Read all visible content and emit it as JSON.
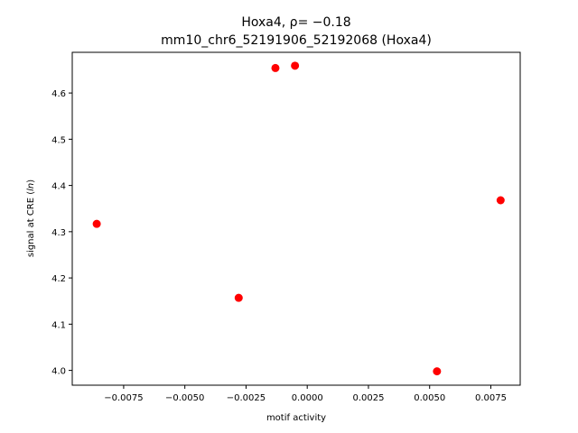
{
  "chart_data": {
    "type": "scatter",
    "title_line1": "Hoxa4, ρ= −0.18",
    "title_line2": "mm10_chr6_52191906_52192068 (Hoxa4)",
    "xlabel": "motif activity",
    "ylabel": "signal at CRE (ln)",
    "ylabel_prefix": "signal at CRE (",
    "ylabel_italic": "ln",
    "ylabel_suffix": ")",
    "xlim": [
      -0.0096,
      0.0087
    ],
    "ylim": [
      3.968,
      4.688
    ],
    "xticks": [
      -0.0075,
      -0.005,
      -0.0025,
      0.0,
      0.0025,
      0.005,
      0.0075
    ],
    "xtick_labels": [
      "−0.0075",
      "−0.0050",
      "−0.0025",
      "0.0000",
      "0.0025",
      "0.0050",
      "0.0075"
    ],
    "yticks": [
      4.0,
      4.1,
      4.2,
      4.3,
      4.4,
      4.5,
      4.6
    ],
    "ytick_labels": [
      "4.0",
      "4.1",
      "4.2",
      "4.3",
      "4.4",
      "4.5",
      "4.6"
    ],
    "grid": false,
    "point_color": "#ff0000",
    "points": [
      {
        "x": -0.0086,
        "y": 4.317
      },
      {
        "x": -0.0028,
        "y": 4.157
      },
      {
        "x": -0.0013,
        "y": 4.654
      },
      {
        "x": -0.0005,
        "y": 4.659
      },
      {
        "x": 0.0053,
        "y": 3.998
      },
      {
        "x": 0.0079,
        "y": 4.368
      }
    ]
  }
}
